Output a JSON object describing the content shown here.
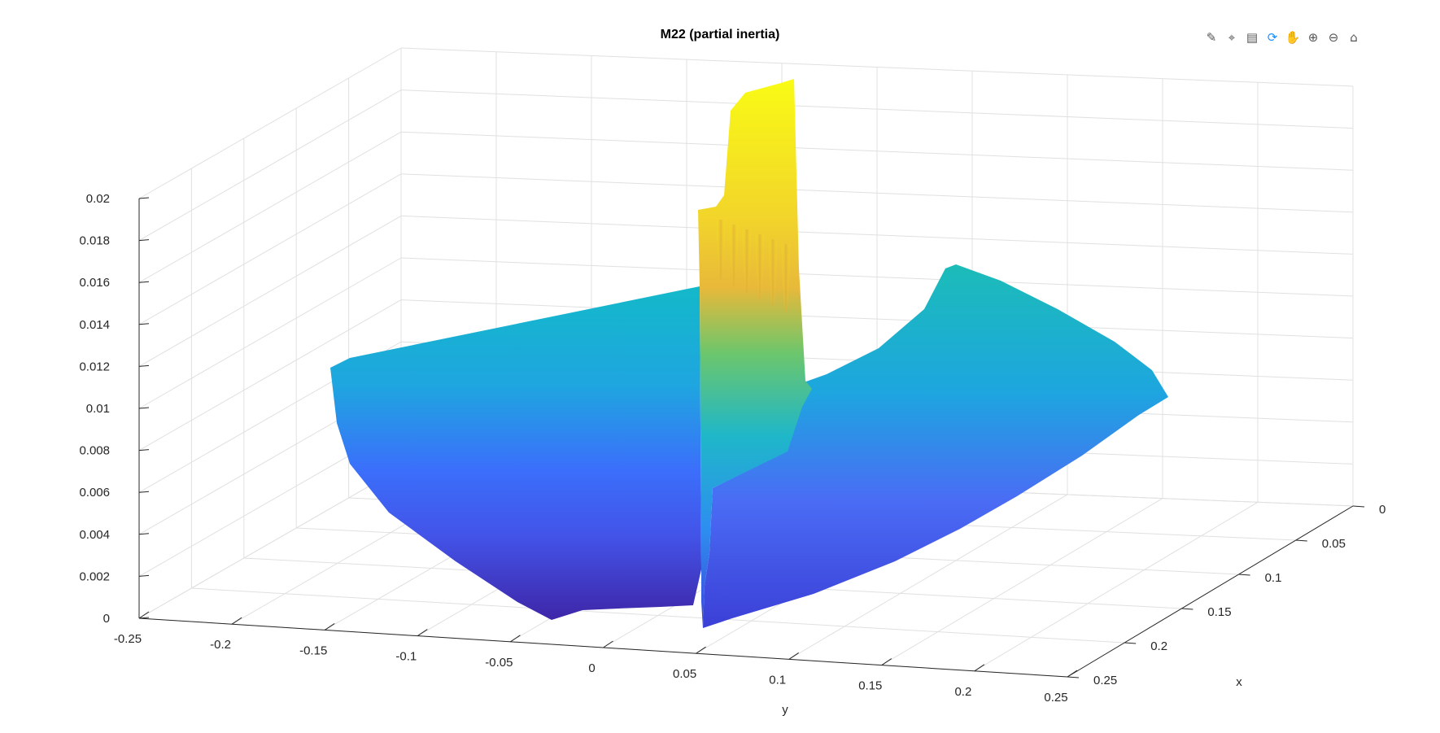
{
  "figure": {
    "toolbar": [
      {
        "name": "brush-icon",
        "glyph": "✎"
      },
      {
        "name": "data-tips-icon",
        "glyph": "⌖"
      },
      {
        "name": "legend-icon",
        "glyph": "▤"
      },
      {
        "name": "rotate-3d-icon",
        "glyph": "⟳"
      },
      {
        "name": "pan-hand-icon",
        "glyph": "✋"
      },
      {
        "name": "zoom-in-icon",
        "glyph": "⊕"
      },
      {
        "name": "zoom-out-icon",
        "glyph": "⊖"
      },
      {
        "name": "home-icon",
        "glyph": "⌂"
      }
    ],
    "active_tool": "rotate-3d-icon"
  },
  "chart_data": {
    "type": "surface",
    "title": "M22  (partial inertia)",
    "xlabel": "x",
    "ylabel": "y",
    "zlabel": "",
    "xlim": [
      0,
      0.25
    ],
    "ylim": [
      -0.25,
      0.25
    ],
    "zlim": [
      0,
      0.02
    ],
    "x_ticks": [
      "0",
      "0.05",
      "0.1",
      "0.15",
      "0.2",
      "0.25"
    ],
    "y_ticks": [
      "-0.25",
      "-0.2",
      "-0.15",
      "-0.1",
      "-0.05",
      "0",
      "0.05",
      "0.1",
      "0.15",
      "0.2",
      "0.25"
    ],
    "z_ticks": [
      "0",
      "0.002",
      "0.004",
      "0.006",
      "0.008",
      "0.01",
      "0.012",
      "0.014",
      "0.016",
      "0.018",
      "0.02"
    ],
    "grid": true,
    "colormap": "parula",
    "colors": {
      "low": "#3e26a8",
      "mid_low": "#3b6ffb",
      "mid": "#1fb1d5",
      "mid_high": "#2fbfa0",
      "high": "#f9fb15"
    },
    "surface_notes": {
      "peak_location_y": 0.05,
      "peak_value_z": 0.0201,
      "left_edge_z": 0.0122,
      "right_edge_z": 0.0114
    }
  }
}
